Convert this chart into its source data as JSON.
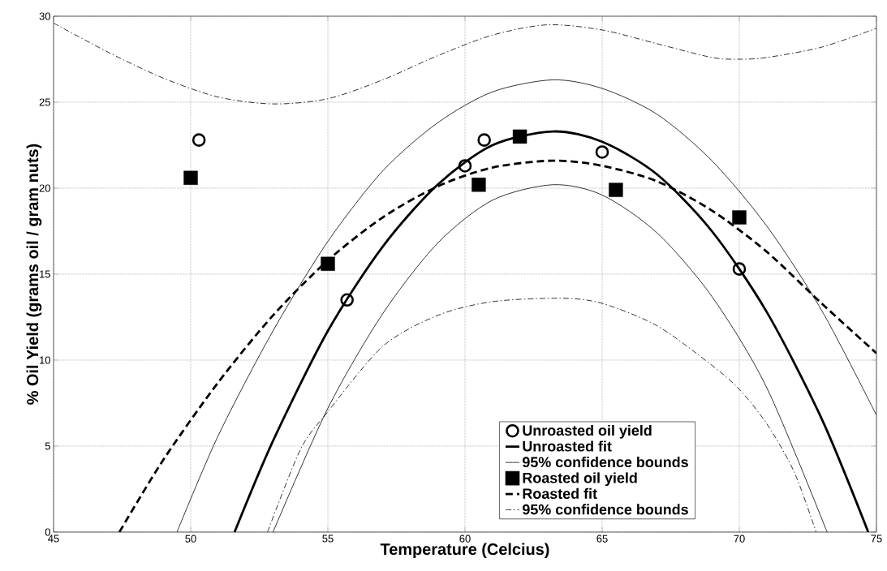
{
  "chart_data": {
    "type": "scatter",
    "xlabel": "Temperature (Celcius)",
    "ylabel": "% Oil Yield (grams oil / gram nuts)",
    "xlim": [
      45,
      75
    ],
    "ylim": [
      0,
      30
    ],
    "xticks": [
      45,
      50,
      55,
      60,
      65,
      70,
      75
    ],
    "yticks": [
      0,
      5,
      10,
      15,
      20,
      25,
      30
    ],
    "grid": true,
    "legend": "bottom right",
    "series": [
      {
        "name": "Unroasted oil yield",
        "marker": "circle",
        "color": "#000000",
        "x": [
          50.3,
          55.7,
          60,
          60.7,
          65,
          70
        ],
        "values": [
          22.8,
          13.5,
          21.3,
          22.8,
          22.1,
          15.3
        ]
      },
      {
        "name": "Unroasted fit",
        "type": "line",
        "line_style": "solid",
        "color": "#000000",
        "x": [
          51.6,
          53,
          55,
          57,
          59,
          61,
          63.2,
          65,
          67,
          69,
          71,
          73,
          74.7
        ],
        "values": [
          0,
          5.3,
          11.7,
          16.6,
          20.2,
          22.5,
          23.3,
          22.7,
          20.8,
          17.5,
          12.8,
          6.6,
          0
        ]
      },
      {
        "name": "95% confidence bounds",
        "type": "line",
        "line_style": "solid",
        "color": "#000000",
        "x": [
          49.5,
          51,
          53,
          55,
          57,
          59,
          61,
          63.2,
          65,
          67,
          69,
          71,
          73,
          75
        ],
        "values": [
          0,
          5.6,
          11.7,
          16.9,
          21.0,
          23.8,
          25.6,
          26.3,
          25.8,
          24.3,
          21.6,
          17.8,
          12.9,
          6.8
        ]
      },
      {
        "type": "line",
        "line_style": "solid",
        "color": "#000000",
        "x": [
          53,
          55,
          57,
          59,
          61,
          63.2,
          65,
          67,
          69,
          71,
          73.2
        ],
        "values": [
          0,
          7.2,
          12.7,
          16.8,
          19.3,
          20.2,
          19.6,
          17.4,
          13.7,
          8.4,
          0
        ]
      },
      {
        "name": "Roasted oil yield",
        "marker": "square",
        "color": "#000000",
        "x": [
          50,
          55,
          60.5,
          62,
          65.5,
          70
        ],
        "values": [
          20.6,
          15.6,
          20.2,
          23.0,
          19.9,
          18.3
        ]
      },
      {
        "name": "Roasted fit",
        "type": "line",
        "line_style": "dashed",
        "color": "#000000",
        "x": [
          47.4,
          49,
          51,
          53,
          55,
          57,
          59,
          61,
          63.2,
          65,
          67,
          69,
          71,
          73,
          75
        ],
        "values": [
          0,
          4.2,
          8.7,
          12.6,
          15.8,
          18.3,
          20.1,
          21.2,
          21.6,
          21.3,
          20.4,
          18.7,
          16.3,
          13.3,
          10.4
        ]
      },
      {
        "name": "95% confidence bounds",
        "type": "line",
        "line_style": "dashdot",
        "color": "#000000",
        "x": [
          45,
          47,
          49,
          51,
          53,
          55,
          57,
          59,
          61,
          63,
          65,
          67,
          69,
          70,
          71,
          73,
          75
        ],
        "values": [
          29.6,
          27.9,
          26.4,
          25.3,
          24.9,
          25.2,
          26.3,
          27.7,
          28.9,
          29.5,
          29.2,
          28.4,
          27.6,
          27.5,
          27.6,
          28.2,
          29.3
        ]
      },
      {
        "type": "line",
        "line_style": "dashdot",
        "color": "#000000",
        "x": [
          52.8,
          54,
          55,
          57,
          59,
          61,
          63.5,
          65,
          67,
          69,
          70,
          71,
          72,
          72.8
        ],
        "values": [
          0,
          4.8,
          7.0,
          10.8,
          12.6,
          13.4,
          13.6,
          13.3,
          12.0,
          9.7,
          8.3,
          6.3,
          3.5,
          0
        ]
      }
    ]
  }
}
